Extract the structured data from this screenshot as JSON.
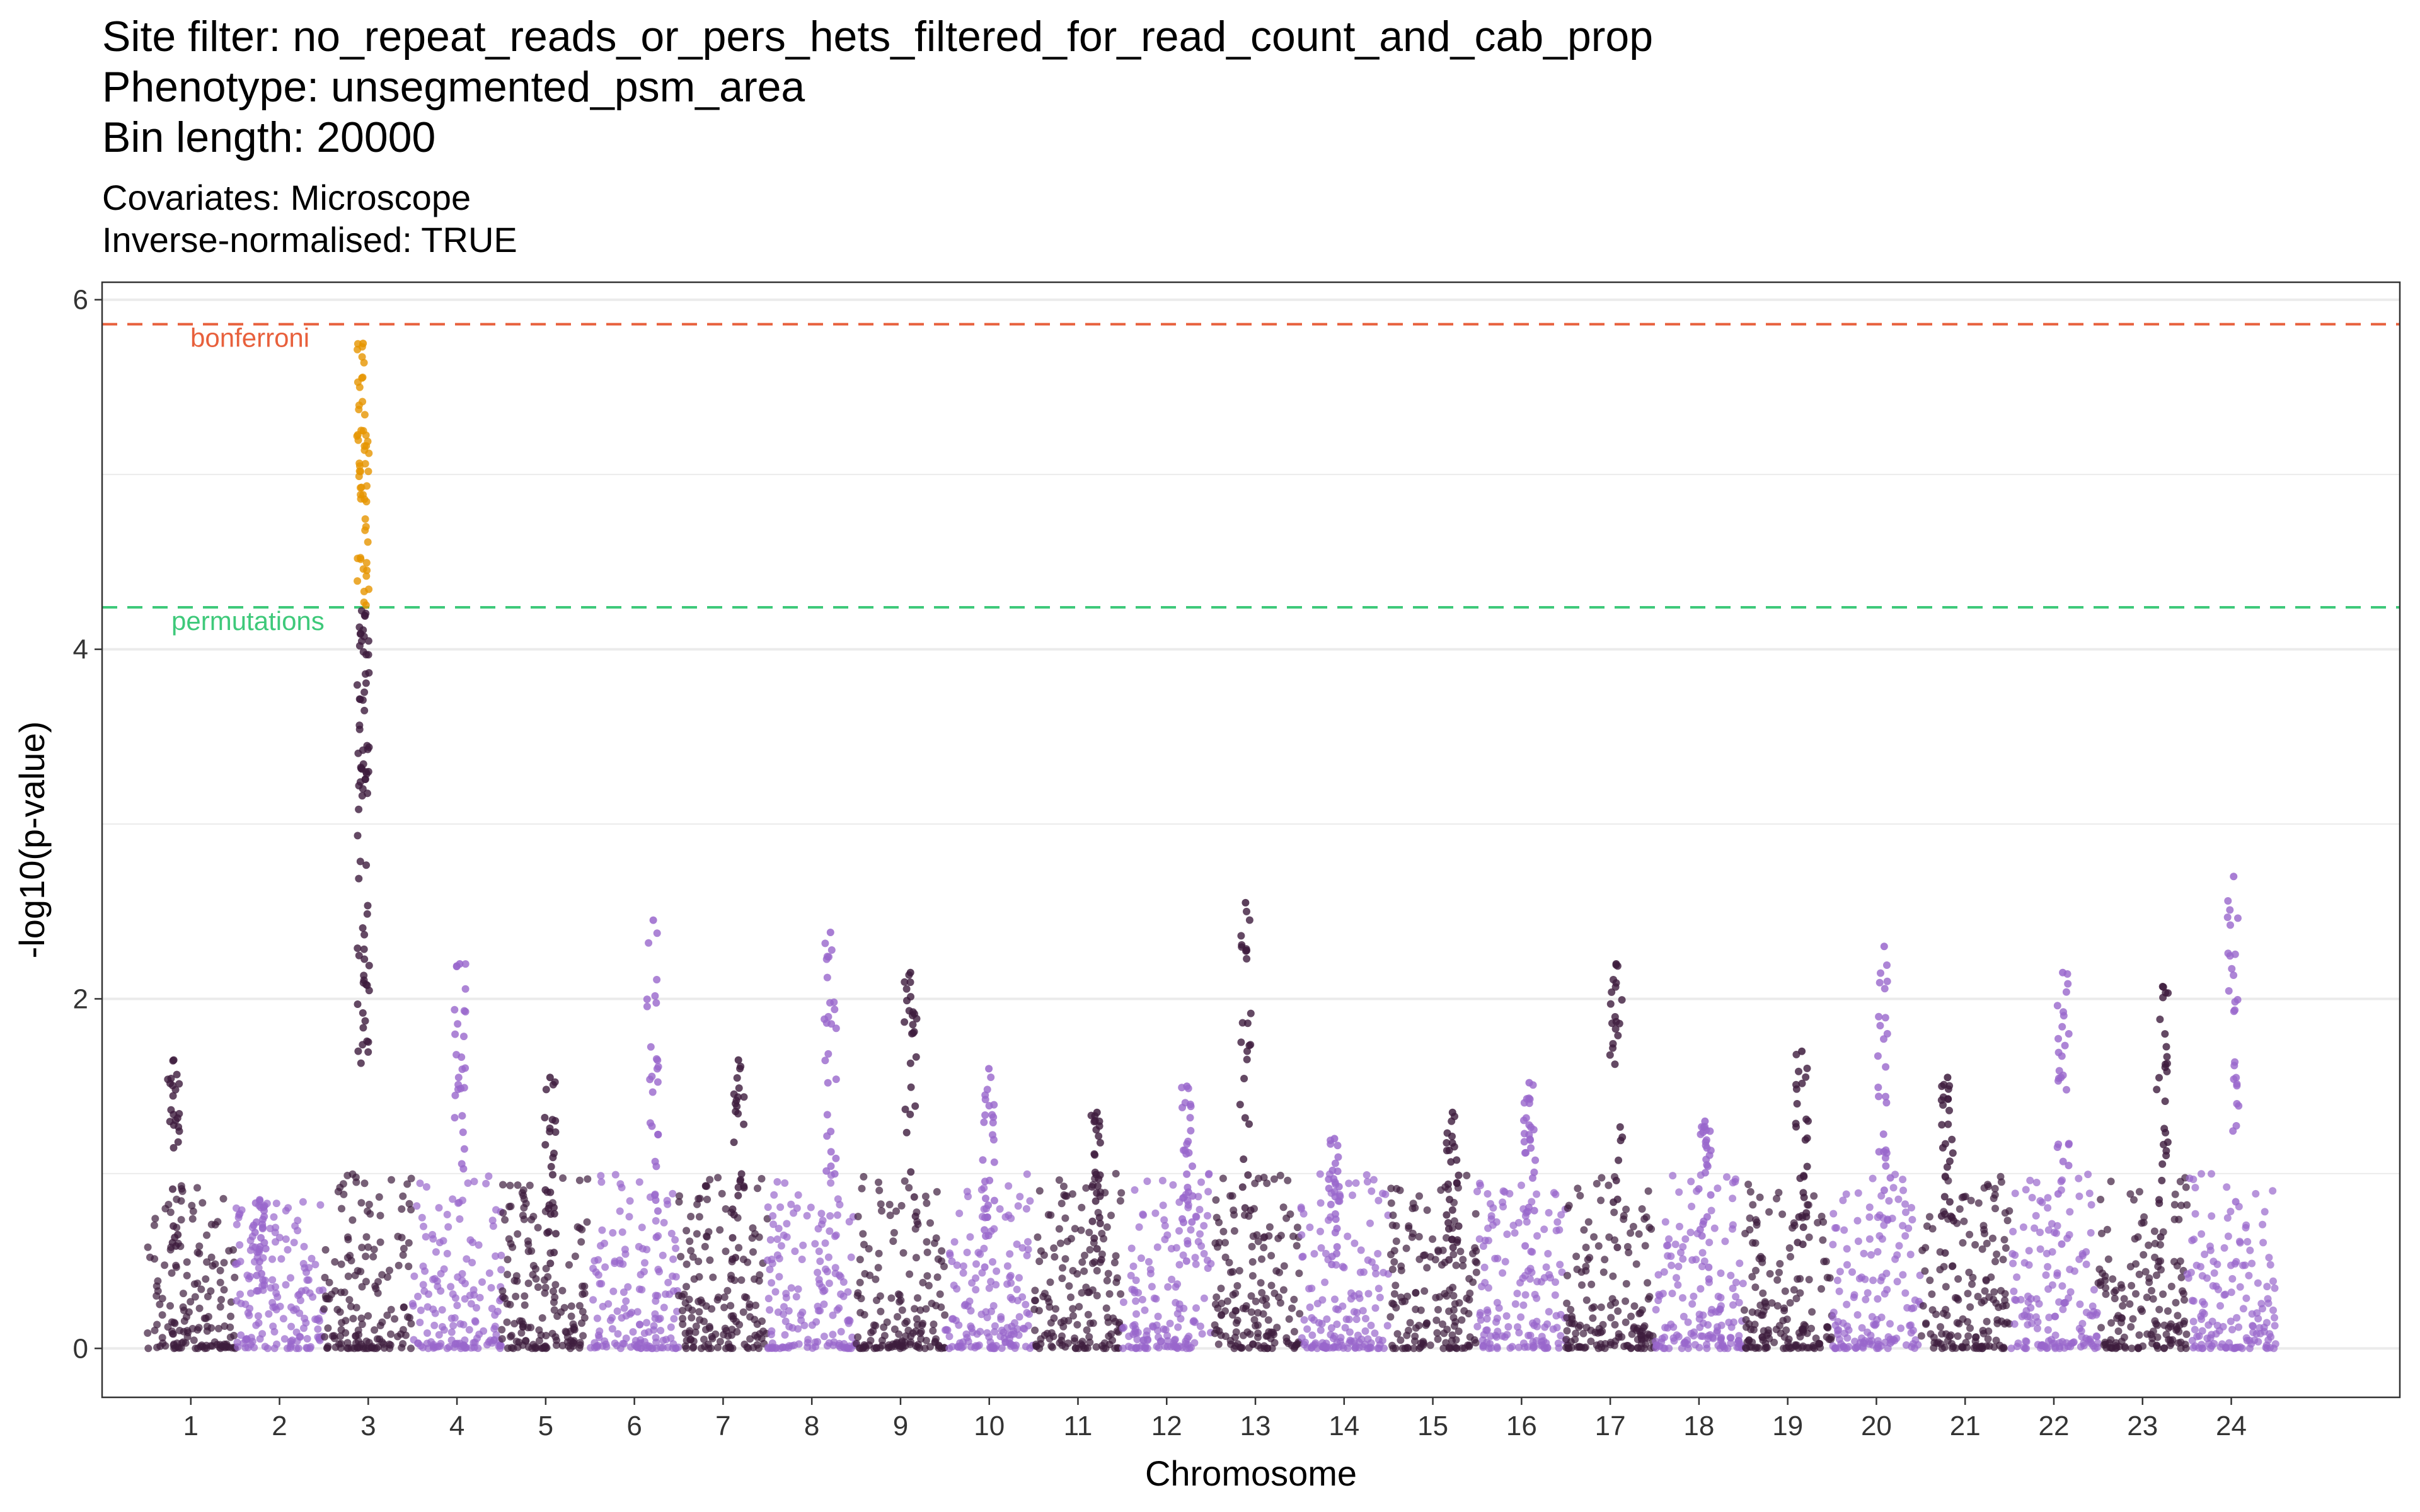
{
  "title_lines": [
    "Site filter: no_repeat_reads_or_pers_hets_filtered_for_read_count_and_cab_prop",
    "Phenotype: unsegmented_psm_area",
    "Bin length: 20000"
  ],
  "subtitle_lines": [
    "Covariates: Microscope",
    "Inverse-normalised: TRUE"
  ],
  "colors": {
    "dark": "#3d1c3d",
    "light": "#9966cc",
    "significant": "#e69500",
    "bonferroni": "#e8603c",
    "permutations": "#3ec97a",
    "grid": "#ebebeb",
    "panel_border": "#333333"
  },
  "chart_data": {
    "type": "scatter",
    "xlabel": "Chromosome",
    "ylabel": "-log10(p-value)",
    "ylim": [
      -0.28,
      6.1
    ],
    "y_ticks": [
      0,
      2,
      4,
      6
    ],
    "grid": true,
    "categories": [
      "1",
      "2",
      "3",
      "4",
      "5",
      "6",
      "7",
      "8",
      "9",
      "10",
      "11",
      "12",
      "13",
      "14",
      "15",
      "16",
      "17",
      "18",
      "19",
      "20",
      "21",
      "22",
      "23",
      "24"
    ],
    "thresholds": [
      {
        "label": "bonferroni",
        "value": 5.86
      },
      {
        "label": "permutations",
        "value": 4.24
      }
    ],
    "chromosome_peaks": [
      1.65,
      0.85,
      5.75,
      2.2,
      1.55,
      2.45,
      1.65,
      2.38,
      2.15,
      1.6,
      1.35,
      1.5,
      2.55,
      1.2,
      1.35,
      1.52,
      2.2,
      1.3,
      1.7,
      2.3,
      1.55,
      2.15,
      2.07,
      2.7
    ],
    "series": [
      {
        "label": "odd chromosomes",
        "color_key": "dark"
      },
      {
        "label": "even chromosomes",
        "color_key": "light"
      },
      {
        "label": "above permutation threshold",
        "color_key": "significant"
      }
    ]
  }
}
